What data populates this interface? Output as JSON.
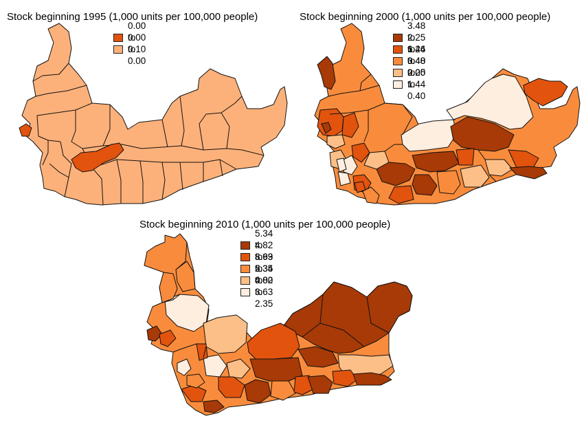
{
  "colors": {
    "bin1": "#fdeee0",
    "bin2": "#fdbf88",
    "bin3": "#f98c3c",
    "bin4": "#e2530e",
    "bin5": "#a73a07",
    "stroke": "#111111"
  },
  "maps": [
    {
      "title": "Stock beginning 1995 (1,000 units per 100,000 people)",
      "legend": [
        {
          "label": "0.00 to 0.10",
          "color": "#e2530e"
        },
        {
          "label": "0.00 to 0.00",
          "color": "#fdb17a"
        }
      ]
    },
    {
      "title": "Stock beginning 2000 (1,000 units per 100,000 people)",
      "legend": [
        {
          "label": "3.48 to 6.26",
          "color": "#a73a07"
        },
        {
          "label": "2.25 to 3.48",
          "color": "#e2530e"
        },
        {
          "label": "1.44 to 2.25",
          "color": "#f98c3c"
        },
        {
          "label": "0.40 to 1.44",
          "color": "#fdbf88"
        },
        {
          "label": "0.00 to 0.40",
          "color": "#fdeee0"
        }
      ]
    },
    {
      "title": "Stock beginning 2010 (1,000 units per 100,000 people)",
      "legend": [
        {
          "label": "5.34 to 8.99",
          "color": "#a73a07"
        },
        {
          "label": "4.82 to 5.34",
          "color": "#e2530e"
        },
        {
          "label": "3.63 to 4.82",
          "color": "#f98c3c"
        },
        {
          "label": "2.35 to 3.63",
          "color": "#fdbf88"
        },
        {
          "label": "0.00 to 2.35",
          "color": "#fdeee0"
        }
      ]
    }
  ]
}
